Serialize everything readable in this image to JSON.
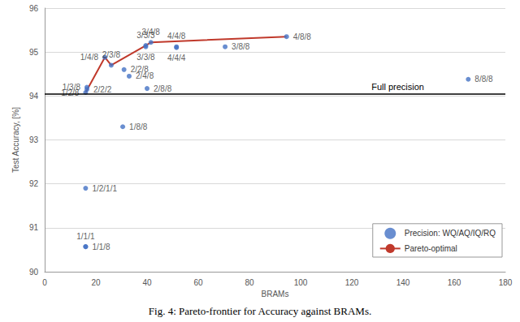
{
  "chart_data": {
    "type": "scatter",
    "title": "Fig. 4: Pareto-frontier for Accuracy against BRAMs.",
    "x_label": "BRAMs",
    "y_label": "Test Accuracy, [%]",
    "xlim": [
      0,
      180
    ],
    "xticks": [
      0,
      20,
      40,
      60,
      80,
      100,
      120,
      140,
      160,
      180
    ],
    "ylim": [
      90,
      96
    ],
    "yticks": [
      90,
      91,
      92,
      93,
      94,
      95,
      96
    ],
    "grid": true,
    "legend": "bottom-right",
    "annotations": [
      {
        "y": 94.05,
        "text": "Full precision"
      }
    ],
    "series": [
      {
        "name": "Precision: WQ/AQ/IQ/RQ",
        "type": "scatter",
        "color": "#4472c4",
        "marker": "circle",
        "x": [
          16,
          16,
          16,
          30.5,
          16,
          16.5,
          16.5,
          23.5,
          26,
          31,
          33,
          40,
          39.5,
          41.5,
          39.5,
          51.5,
          51.5,
          70.5,
          94.5,
          165.5
        ],
        "values": [
          90.57,
          90.57,
          91.9,
          93.3,
          94.08,
          94.15,
          94.2,
          94.88,
          94.7,
          94.6,
          94.45,
          94.17,
          95.15,
          95.22,
          95.12,
          95.12,
          95.1,
          95.12,
          95.35,
          94.38
        ],
        "point_labels": [
          "1/1/1",
          "1/1/8",
          "1/2/1/1",
          "1/8/8",
          "1/2/8",
          "2/2/2",
          "1/3/8",
          "1/4/8",
          "2/3/8",
          "2/2/8",
          "2/4/8",
          "2/8/8",
          "3/3/3",
          "3/4/8",
          "3/3/8",
          "4/4/8",
          "4/4/4",
          "3/8/8",
          "4/8/8",
          "8/8/8"
        ]
      },
      {
        "name": "Pareto-optimal",
        "type": "line",
        "color": "#c0392b",
        "line_style": "solid",
        "x": [
          16,
          23.5,
          26,
          39.5,
          41.5,
          94.5
        ],
        "values": [
          94.08,
          94.88,
          94.7,
          95.15,
          95.22,
          95.35
        ]
      }
    ]
  }
}
